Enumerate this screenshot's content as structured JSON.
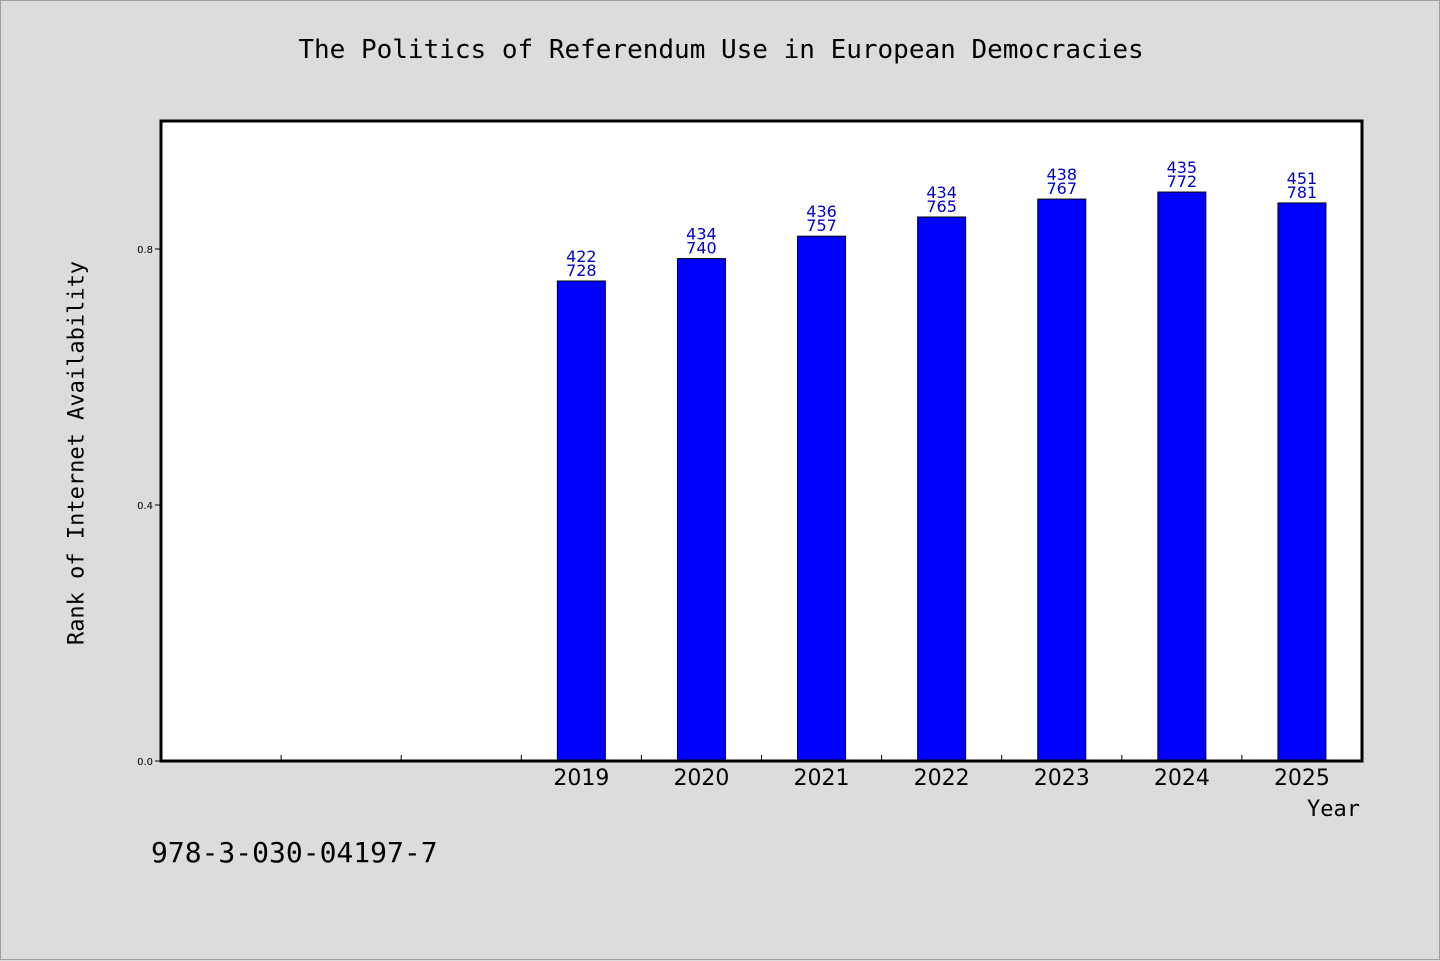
{
  "chart_data": {
    "type": "bar",
    "title": "The Politics of Referendum Use in European Democracies",
    "xlabel": "Year",
    "ylabel": "Rank of Internet Availability",
    "categories": [
      "",
      "",
      "",
      "2019",
      "2020",
      "2021",
      "2022",
      "2023",
      "2024",
      "2025"
    ],
    "values": [
      null,
      null,
      null,
      0.75,
      0.785,
      0.82,
      0.85,
      0.878,
      0.889,
      0.872
    ],
    "bar_labels": [
      [
        "",
        ""
      ],
      [
        "",
        ""
      ],
      [
        "",
        ""
      ],
      [
        "422",
        "728"
      ],
      [
        "434",
        "740"
      ],
      [
        "436",
        "757"
      ],
      [
        "434",
        "765"
      ],
      [
        "438",
        "767"
      ],
      [
        "435",
        "772"
      ],
      [
        "451",
        "781"
      ]
    ],
    "yticks": [
      "0.0",
      "0.4",
      "0.8"
    ],
    "ytick_values": [
      0.0,
      0.4,
      0.8
    ],
    "ylim": [
      0,
      1.0
    ],
    "grid": false,
    "bar_color": "#0000ff",
    "label_color": "#0000cc"
  },
  "footer": {
    "isbn": "978-3-030-04197-7"
  }
}
